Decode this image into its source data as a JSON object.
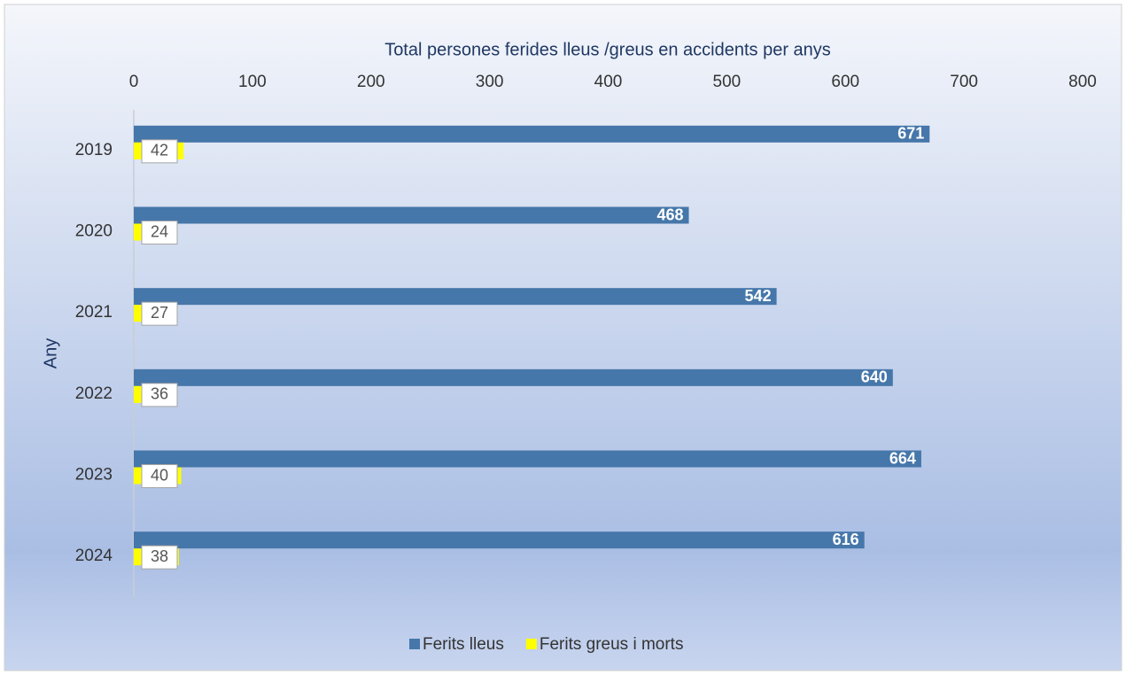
{
  "chart_data": {
    "type": "hbar",
    "title": "Total persones ferides lleus /greus en accidents per anys",
    "y_label": "Any",
    "categories": [
      "2019",
      "2020",
      "2021",
      "2022",
      "2023",
      "2024"
    ],
    "series": [
      {
        "name": "Ferits lleus",
        "color": "#4677aa",
        "values": [
          671,
          468,
          542,
          640,
          664,
          616
        ]
      },
      {
        "name": "Ferits greus i morts",
        "color": "#ffff00",
        "values": [
          42,
          24,
          27,
          36,
          40,
          38
        ]
      }
    ],
    "xlim": [
      0,
      800
    ],
    "xticks": [
      0,
      100,
      200,
      300,
      400,
      500,
      600,
      700,
      800
    ],
    "grid": false,
    "legend": "bottom"
  }
}
